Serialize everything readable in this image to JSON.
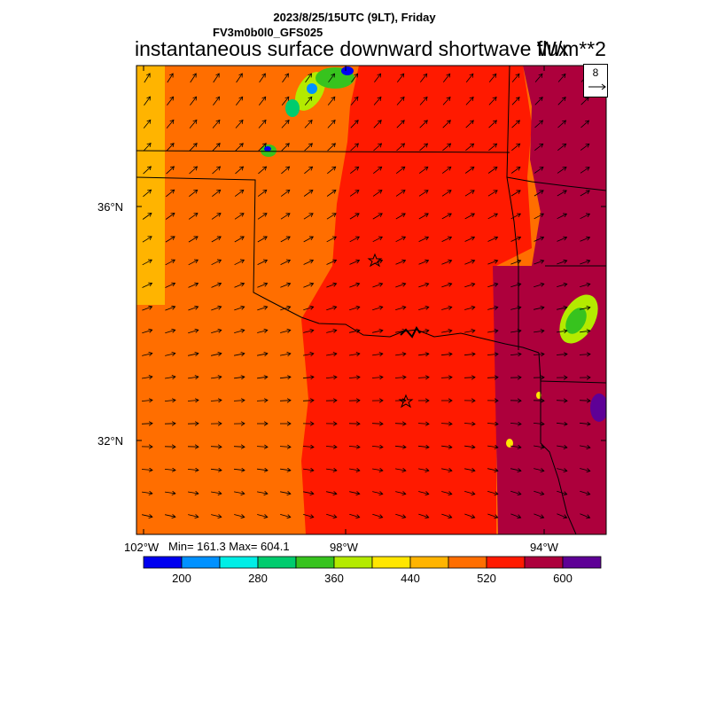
{
  "header": {
    "date_line": "2023/8/25/15UTC (9LT), Friday",
    "model_line": "FV3m0b0l0_GFS025",
    "title": "instantaneous surface downward shortwave flux",
    "units": "W/m**2"
  },
  "reference_vector": {
    "value": "8"
  },
  "axes": {
    "lat_labels": [
      "36°N",
      "32°N"
    ],
    "lon_labels": [
      "102°W",
      "98°W",
      "94°W"
    ]
  },
  "stats": {
    "text": "Min= 161.3 Max= 604.1"
  },
  "colorbar": {
    "colors": [
      "#0000f0",
      "#0091ff",
      "#00eee6",
      "#00cc6e",
      "#37c31e",
      "#b4ea00",
      "#ffe600",
      "#ffb400",
      "#ff6e00",
      "#ff1a00",
      "#ad003c",
      "#5e0096"
    ],
    "labels": [
      "200",
      "280",
      "360",
      "440",
      "520",
      "600"
    ]
  },
  "colors": {
    "band_west": "#ffb400",
    "band_main_orange": "#ff6e00",
    "band_red": "#ff1a00",
    "band_crimson": "#ad003c",
    "band_purple": "#5e0096"
  }
}
